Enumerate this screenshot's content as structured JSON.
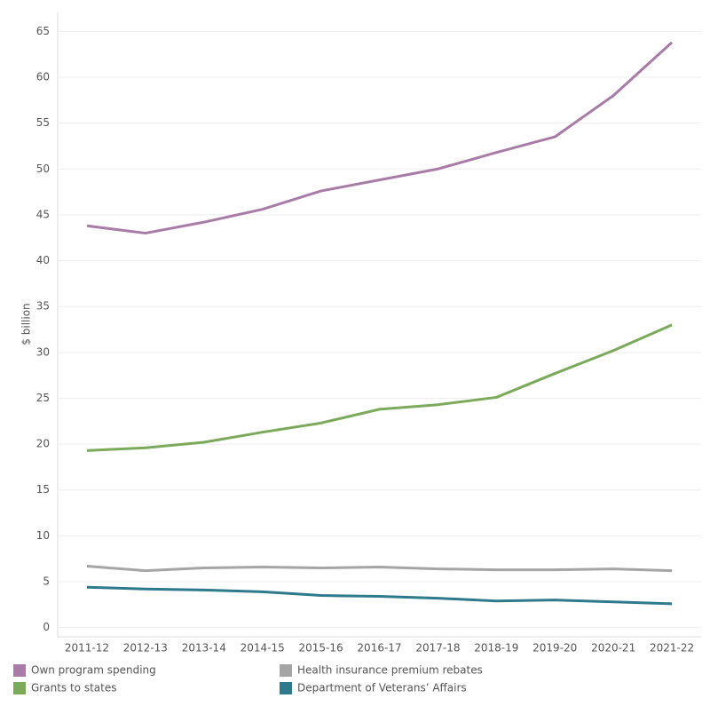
{
  "chart_data": {
    "type": "line",
    "y_label": "$ billion",
    "categories": [
      "2011-12",
      "2012-13",
      "2013-14",
      "2014-15",
      "2015-16",
      "2016-17",
      "2017-18",
      "2018-19",
      "2019-20",
      "2020-21",
      "2021-22"
    ],
    "series": [
      {
        "name": "Own program spending",
        "color": "#a97ba7",
        "values": [
          43.8,
          43.0,
          44.2,
          45.6,
          47.6,
          48.8,
          50.0,
          51.8,
          53.5,
          58.0,
          63.8
        ]
      },
      {
        "name": "Grants to states",
        "color": "#7aaa5a",
        "values": [
          19.3,
          19.6,
          20.2,
          21.3,
          22.3,
          23.8,
          24.3,
          25.1,
          27.7,
          30.2,
          33.0
        ]
      },
      {
        "name": "Health insurance premium rebates",
        "color": "#a5a5a5",
        "values": [
          6.7,
          6.2,
          6.5,
          6.6,
          6.5,
          6.6,
          6.4,
          6.3,
          6.3,
          6.4,
          6.2
        ]
      },
      {
        "name": "Department of Veterans’ Affairs",
        "color": "#2e7a8c",
        "values": [
          4.4,
          4.2,
          4.1,
          3.9,
          3.5,
          3.4,
          3.2,
          2.9,
          3.0,
          2.8,
          2.6
        ]
      }
    ],
    "ylim": [
      -1,
      66
    ],
    "yticks": [
      0,
      5,
      10,
      15,
      20,
      25,
      30,
      35,
      40,
      45,
      50,
      55,
      60,
      65
    ],
    "grid": true
  }
}
